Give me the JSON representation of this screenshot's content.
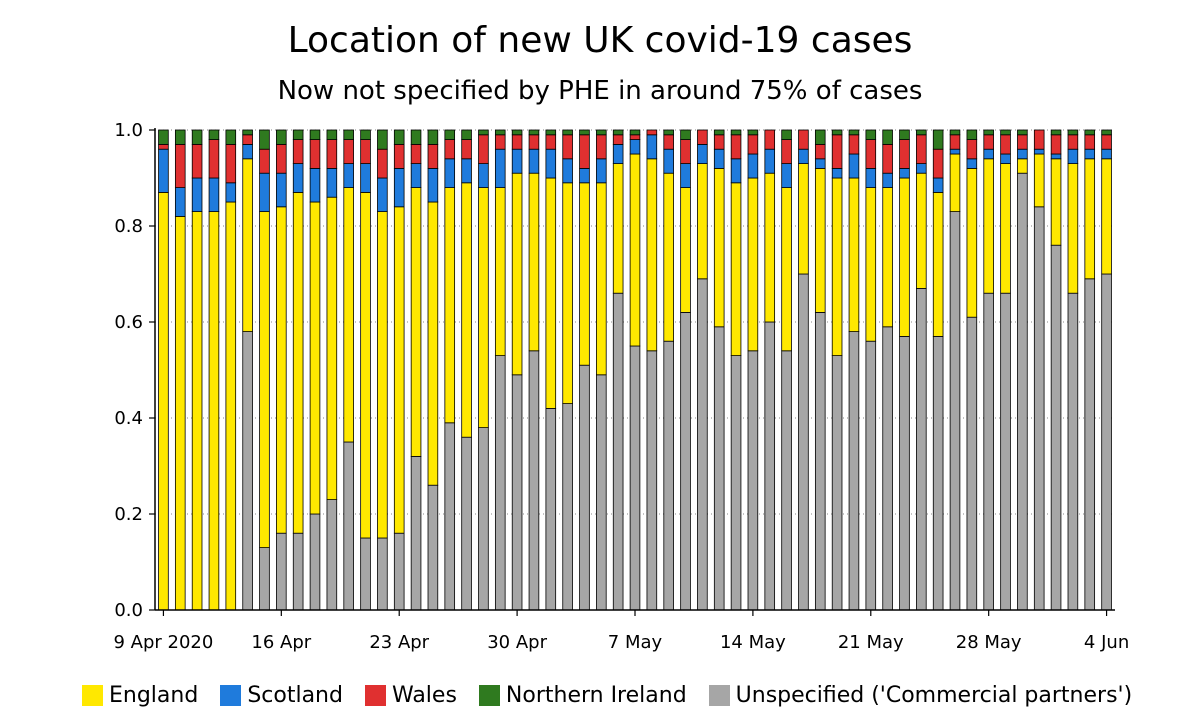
{
  "colors": {
    "England": "#ffe800",
    "Scotland": "#1f7bdc",
    "Wales": "#e03030",
    "Northern Ireland": "#2f7a1f",
    "Unspecified": "#a6a6a6"
  },
  "chart_data": {
    "type": "bar",
    "stacked": true,
    "title": "Location of new UK covid-19 cases",
    "subtitle": "Now not specified by PHE in around 75% of cases",
    "ylim": [
      0,
      1.0
    ],
    "y_ticks": [
      "0.0",
      "0.2",
      "0.4",
      "0.6",
      "0.8",
      "1.0"
    ],
    "x_tick_labels": [
      {
        "index": 0,
        "label": "9 Apr 2020"
      },
      {
        "index": 7,
        "label": "16 Apr"
      },
      {
        "index": 14,
        "label": "23 Apr"
      },
      {
        "index": 21,
        "label": "30 Apr"
      },
      {
        "index": 28,
        "label": "7 May"
      },
      {
        "index": 35,
        "label": "14 May"
      },
      {
        "index": 42,
        "label": "21 May"
      },
      {
        "index": 49,
        "label": "28 May"
      },
      {
        "index": 56,
        "label": "4 Jun"
      }
    ],
    "legend": [
      {
        "name": "England",
        "label": "England"
      },
      {
        "name": "Scotland",
        "label": "Scotland"
      },
      {
        "name": "Wales",
        "label": "Wales"
      },
      {
        "name": "Northern Ireland",
        "label": "Northern Ireland"
      },
      {
        "name": "Unspecified",
        "label": "Unspecified ('Commercial partners')"
      }
    ],
    "legend_position": "bottom",
    "grid": "horizontal-dotted",
    "categories": [
      "9 Apr",
      "10 Apr",
      "11 Apr",
      "12 Apr",
      "13 Apr",
      "14 Apr",
      "15 Apr",
      "16 Apr",
      "17 Apr",
      "18 Apr",
      "19 Apr",
      "20 Apr",
      "21 Apr",
      "22 Apr",
      "23 Apr",
      "24 Apr",
      "25 Apr",
      "26 Apr",
      "27 Apr",
      "28 Apr",
      "29 Apr",
      "30 Apr",
      "1 May",
      "2 May",
      "3 May",
      "4 May",
      "5 May",
      "6 May",
      "7 May",
      "8 May",
      "9 May",
      "10 May",
      "11 May",
      "12 May",
      "13 May",
      "14 May",
      "15 May",
      "16 May",
      "17 May",
      "18 May",
      "19 May",
      "20 May",
      "21 May",
      "22 May",
      "23 May",
      "24 May",
      "25 May",
      "26 May",
      "27 May",
      "28 May",
      "29 May",
      "30 May",
      "31 May",
      "1 Jun",
      "2 Jun",
      "3 Jun",
      "4 Jun"
    ],
    "series": [
      {
        "name": "Unspecified",
        "values": [
          0,
          0,
          0,
          0,
          0,
          0.58,
          0.13,
          0.16,
          0.16,
          0.2,
          0.23,
          0.35,
          0.15,
          0.15,
          0.16,
          0.32,
          0.26,
          0.39,
          0.36,
          0.38,
          0.53,
          0.49,
          0.54,
          0.42,
          0.43,
          0.51,
          0.49,
          0.66,
          0.55,
          0.54,
          0.56,
          0.62,
          0.69,
          0.59,
          0.53,
          0.54,
          0.6,
          0.54,
          0.7,
          0.62,
          0.53,
          0.58,
          0.56,
          0.59,
          0.57,
          0.67,
          0.57,
          0.83,
          0.61,
          0.66,
          0.66,
          0.91,
          0.84,
          0.76,
          0.66,
          0.69,
          0.7
        ]
      },
      {
        "name": "England",
        "values": [
          0.87,
          0.82,
          0.83,
          0.83,
          0.85,
          0.36,
          0.7,
          0.68,
          0.71,
          0.65,
          0.63,
          0.53,
          0.72,
          0.68,
          0.68,
          0.56,
          0.59,
          0.49,
          0.53,
          0.5,
          0.35,
          0.42,
          0.37,
          0.48,
          0.46,
          0.38,
          0.4,
          0.27,
          0.4,
          0.4,
          0.35,
          0.26,
          0.24,
          0.33,
          0.36,
          0.36,
          0.31,
          0.34,
          0.23,
          0.3,
          0.37,
          0.32,
          0.32,
          0.29,
          0.33,
          0.24,
          0.3,
          0.12,
          0.31,
          0.28,
          0.27,
          0.03,
          0.11,
          0.18,
          0.27,
          0.25,
          0.24
        ]
      },
      {
        "name": "Scotland",
        "values": [
          0.09,
          0.06,
          0.07,
          0.07,
          0.04,
          0.03,
          0.08,
          0.07,
          0.06,
          0.07,
          0.06,
          0.05,
          0.06,
          0.07,
          0.08,
          0.05,
          0.07,
          0.06,
          0.05,
          0.05,
          0.08,
          0.05,
          0.05,
          0.06,
          0.05,
          0.03,
          0.05,
          0.04,
          0.03,
          0.05,
          0.05,
          0.05,
          0.04,
          0.04,
          0.05,
          0.05,
          0.05,
          0.05,
          0.03,
          0.02,
          0.02,
          0.05,
          0.04,
          0.03,
          0.02,
          0.02,
          0.03,
          0.01,
          0.02,
          0.02,
          0.02,
          0.02,
          0.01,
          0.01,
          0.03,
          0.02,
          0.02
        ]
      },
      {
        "name": "Wales",
        "values": [
          0.01,
          0.09,
          0.07,
          0.08,
          0.08,
          0.02,
          0.05,
          0.06,
          0.05,
          0.06,
          0.06,
          0.05,
          0.05,
          0.06,
          0.05,
          0.04,
          0.05,
          0.04,
          0.04,
          0.06,
          0.03,
          0.03,
          0.03,
          0.03,
          0.05,
          0.07,
          0.05,
          0.02,
          0.01,
          0.01,
          0.03,
          0.05,
          0.03,
          0.03,
          0.05,
          0.04,
          0.04,
          0.05,
          0.04,
          0.03,
          0.07,
          0.04,
          0.06,
          0.06,
          0.06,
          0.06,
          0.06,
          0.03,
          0.04,
          0.03,
          0.04,
          0.03,
          0.04,
          0.04,
          0.03,
          0.03,
          0.03
        ]
      },
      {
        "name": "Northern Ireland",
        "values": [
          0.03,
          0.03,
          0.03,
          0.02,
          0.03,
          0.01,
          0.04,
          0.03,
          0.02,
          0.02,
          0.02,
          0.02,
          0.02,
          0.04,
          0.03,
          0.03,
          0.03,
          0.02,
          0.02,
          0.01,
          0.01,
          0.01,
          0.01,
          0.01,
          0.01,
          0.01,
          0.01,
          0.01,
          0.01,
          0.0,
          0.01,
          0.02,
          0.0,
          0.01,
          0.01,
          0.01,
          0.0,
          0.02,
          0.0,
          0.03,
          0.01,
          0.01,
          0.02,
          0.03,
          0.02,
          0.01,
          0.04,
          0.01,
          0.02,
          0.01,
          0.01,
          0.01,
          0.0,
          0.01,
          0.01,
          0.01,
          0.01
        ]
      }
    ]
  }
}
